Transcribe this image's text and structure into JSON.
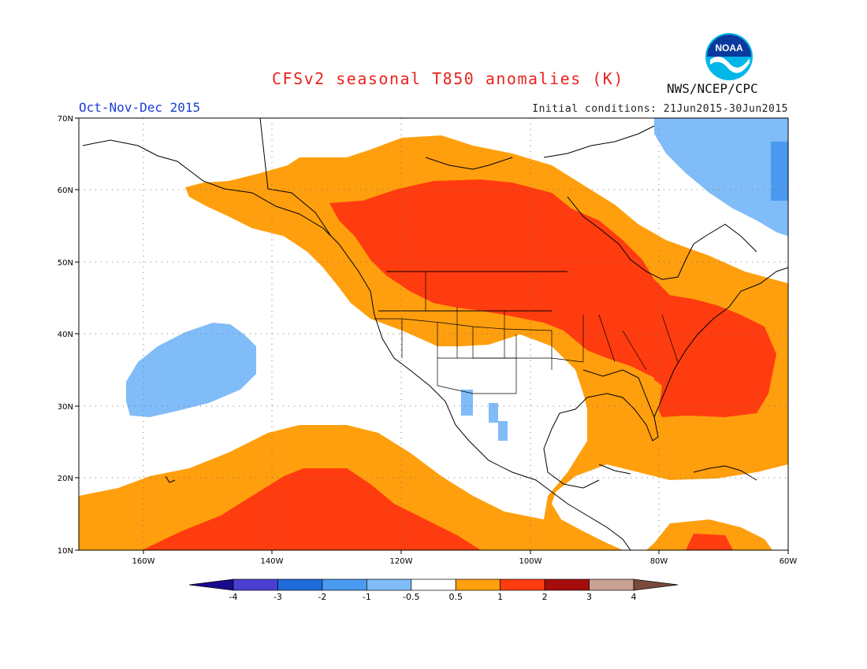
{
  "header": {
    "title": "CFSv2 seasonal T850 anomalies (K)",
    "period": "Oct-Nov-Dec 2015",
    "initial_conditions": "Initial conditions: 21Jun2015-30Jun2015",
    "agency": "NWS/NCEP/CPC",
    "logo_text": "NOAA"
  },
  "map": {
    "lon_labels": [
      "160W",
      "140W",
      "120W",
      "100W",
      "80W",
      "60W"
    ],
    "lat_labels": [
      "10N",
      "20N",
      "30N",
      "40N",
      "50N",
      "60N",
      "70N"
    ],
    "lon_range": [
      -170,
      -60
    ],
    "lat_range": [
      10,
      70
    ],
    "grid_lines": "dotted"
  },
  "legend": {
    "labels": [
      "-4",
      "-3",
      "-2",
      "-1",
      "-0.5",
      "0.5",
      "1",
      "2",
      "3",
      "4"
    ],
    "colors": [
      "#1a0a8c",
      "#4a3fd0",
      "#1f6ad9",
      "#4a9af0",
      "#80bcf8",
      "#ffffff",
      "#ff9f0d",
      "#ff3c0f",
      "#a50d0d",
      "#c8a292",
      "#7a4a3c"
    ]
  },
  "anomaly_colors": {
    "cool_light": "#80bcf8",
    "cool_mid": "#4a9af0",
    "warm_light": "#ff9f0d",
    "warm_mid": "#ff3c0f"
  }
}
